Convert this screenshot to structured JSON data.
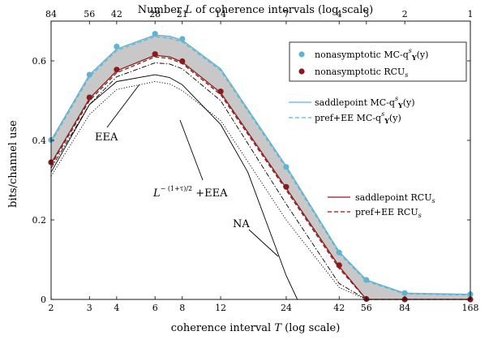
{
  "chart_data": {
    "type": "line",
    "xlabel": "coherence interval T (log scale)",
    "x2label": "Number L of coherence intervals (log scale)",
    "ylabel": "bits/channel use",
    "xscale": "log",
    "xlim": [
      2,
      168
    ],
    "ylim": [
      0,
      0.7
    ],
    "x_ticks": [
      2,
      3,
      4,
      6,
      8,
      12,
      24,
      42,
      56,
      84,
      168
    ],
    "x_tick_labels": [
      "2",
      "3",
      "4",
      "6",
      "8",
      "12",
      "24",
      "42",
      "56",
      "84",
      "168"
    ],
    "x2_ticks": [
      2,
      3,
      4,
      6,
      8,
      12,
      24,
      42,
      56,
      84,
      168
    ],
    "x2_tick_labels": [
      "84",
      "56",
      "42",
      "28",
      "21",
      "14",
      "7",
      "4",
      "3",
      "2",
      "1"
    ],
    "y_ticks": [
      0,
      0.2,
      0.4,
      0.6
    ],
    "y_tick_labels": [
      "0",
      "0.2",
      "0.4",
      "0.6"
    ],
    "grid": false,
    "shaded_region": {
      "between": [
        "saddlepoint MC-q",
        "saddlepoint RCU"
      ],
      "color": "#c8c8c8"
    },
    "colors": {
      "blue": "#5fb4d4",
      "red": "#8b1a1a",
      "black": "#000000",
      "grey": "#c8c8c8"
    },
    "series": [
      {
        "key": "mcq_nonasym",
        "style": "markers",
        "color": "#5fb4d4",
        "label_main": "nonasymptotic MC-q",
        "label_sup": "s",
        "label_sub": "Y",
        "label_arg": "(y",
        "label_end": ")",
        "x": [
          2,
          3,
          4,
          6,
          8,
          24,
          42,
          56,
          84,
          168
        ],
        "y": [
          0.401,
          0.565,
          0.636,
          0.668,
          0.655,
          0.333,
          0.118,
          0.049,
          0.016,
          0.013
        ]
      },
      {
        "key": "rcu_nonasym",
        "style": "markers",
        "color": "#8b1a1a",
        "label_main": "nonasymptotic RCU",
        "label_sub": "s",
        "x": [
          2,
          3,
          4,
          6,
          8,
          12,
          24,
          42,
          56,
          84,
          168
        ],
        "y": [
          0.345,
          0.508,
          0.578,
          0.617,
          0.599,
          0.523,
          0.283,
          0.086,
          0.001,
          0.0,
          0.0
        ]
      },
      {
        "key": "mcq_saddle",
        "style": "solid",
        "color": "#5fb4d4",
        "label_main": "saddlepoint MC-q",
        "label_sup": "s",
        "label_sub": "Y",
        "label_arg": "(y",
        "label_end": ")",
        "x": [
          2,
          3,
          4,
          6,
          7,
          8,
          12,
          24,
          42,
          56,
          84,
          168
        ],
        "y": [
          0.4,
          0.565,
          0.63,
          0.665,
          0.662,
          0.652,
          0.58,
          0.335,
          0.12,
          0.049,
          0.016,
          0.013
        ]
      },
      {
        "key": "mcq_pref",
        "style": "dashed",
        "color": "#5fb4d4",
        "label_main": "pref+EE MC-q",
        "label_sup": "s",
        "label_sub": "Y",
        "label_arg": "(y",
        "label_end": ")",
        "x": [
          2,
          3,
          4,
          6,
          7,
          8,
          12,
          24,
          42,
          56,
          84,
          168
        ],
        "y": [
          0.395,
          0.56,
          0.626,
          0.661,
          0.657,
          0.648,
          0.576,
          0.33,
          0.116,
          0.046,
          0.014,
          0.011
        ]
      },
      {
        "key": "rcu_saddle",
        "style": "solid",
        "color": "#8b1a1a",
        "label_main": "saddlepoint RCU",
        "label_sub": "s",
        "x": [
          2,
          3,
          4,
          6,
          7,
          8,
          12,
          24,
          42,
          56,
          84,
          168
        ],
        "y": [
          0.342,
          0.505,
          0.575,
          0.614,
          0.61,
          0.597,
          0.52,
          0.28,
          0.083,
          0.0,
          0.0,
          0.0
        ]
      },
      {
        "key": "rcu_pref",
        "style": "dashed",
        "color": "#8b1a1a",
        "label_main": "pref+EE RCU",
        "label_sub": "s",
        "x": [
          2,
          3,
          4,
          6,
          7,
          8,
          12,
          24,
          42,
          56,
          84,
          168
        ],
        "y": [
          0.337,
          0.5,
          0.57,
          0.61,
          0.606,
          0.593,
          0.515,
          0.275,
          0.078,
          0.0,
          0.0,
          0.0
        ]
      },
      {
        "key": "eea",
        "style": "solid",
        "color": "#000000",
        "label_main": "EEA",
        "x": [
          2,
          3,
          4,
          6,
          7,
          8,
          12,
          16,
          24,
          27
        ],
        "y": [
          0.32,
          0.49,
          0.548,
          0.565,
          0.558,
          0.54,
          0.44,
          0.32,
          0.06,
          0.0
        ]
      },
      {
        "key": "lpow_eea",
        "style": "dashdot",
        "color": "#000000",
        "label_main": "L",
        "label_sup": "− (1+τ)/2",
        "label_end": " +EEA",
        "x": [
          2,
          3,
          4,
          6,
          7,
          8,
          12,
          24,
          42,
          56
        ],
        "y": [
          0.33,
          0.49,
          0.56,
          0.595,
          0.592,
          0.58,
          0.5,
          0.24,
          0.04,
          0.0
        ]
      },
      {
        "key": "na",
        "style": "dotted",
        "color": "#000000",
        "label_main": "NA",
        "x": [
          2,
          3,
          4,
          6,
          7,
          8,
          12,
          24,
          42,
          56
        ],
        "y": [
          0.31,
          0.465,
          0.528,
          0.548,
          0.542,
          0.525,
          0.45,
          0.2,
          0.03,
          0.0
        ]
      }
    ],
    "legend": {
      "placement": "top-right"
    }
  }
}
